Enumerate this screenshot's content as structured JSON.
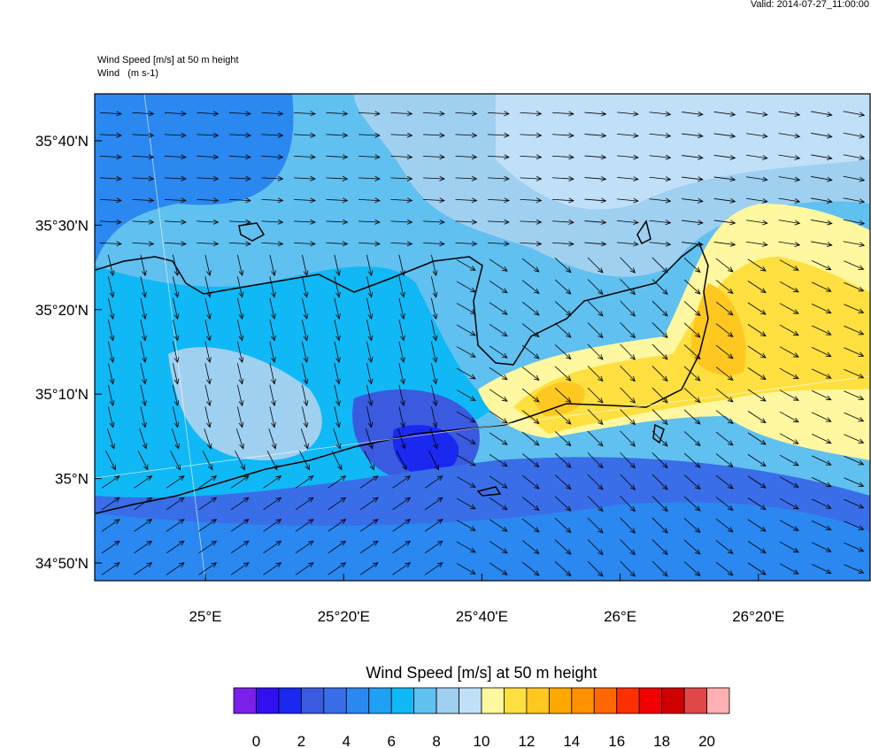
{
  "header": {
    "valid": "Valid: 2014-07-27_11:00:00"
  },
  "map": {
    "title": "Wind Speed [m/s] at 50 m height",
    "subtitle": "Wind   (m s-1)",
    "lat_labels": [
      "35°40'N",
      "35°30'N",
      "35°20'N",
      "35°10'N",
      "35°N",
      "34°50'N"
    ],
    "lon_labels": [
      "25°E",
      "25°20'E",
      "25°40'E",
      "26°E",
      "26°20'E"
    ]
  },
  "colorbar": {
    "title": "Wind Speed [m/s] at 50 m height",
    "colors": [
      "#7a20e8",
      "#3010f0",
      "#1a28f0",
      "#3a5ae0",
      "#3a6ee8",
      "#2a88f0",
      "#20a0f5",
      "#10b8f5",
      "#60c0f0",
      "#a0d0f0",
      "#c0e0f8",
      "#fff8a0",
      "#ffe040",
      "#ffc820",
      "#ffa800",
      "#ff9000",
      "#ff6800",
      "#ff3000",
      "#f00000",
      "#d00000",
      "#e04848",
      "#ffb0b0"
    ],
    "ticks": [
      0,
      2,
      4,
      6,
      8,
      10,
      12,
      14,
      16,
      18,
      20
    ]
  }
}
